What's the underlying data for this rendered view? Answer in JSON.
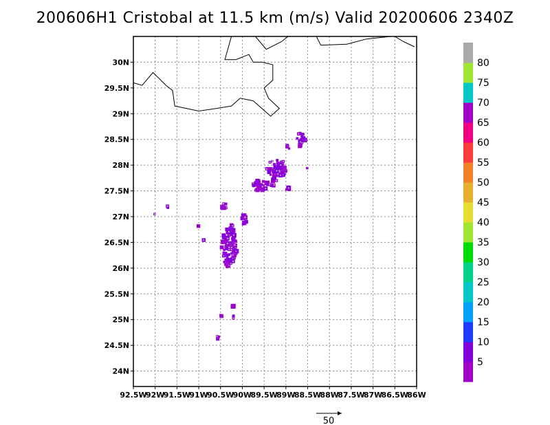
{
  "title": "200606H1 Cristobal at 11.5 km (m/s) Valid 20200606 2340Z",
  "map": {
    "lon_range": [
      -92.5,
      -86.0
    ],
    "lat_range": [
      23.7,
      30.5
    ],
    "lon_ticks": [
      -92.5,
      -92,
      -91.5,
      -91,
      -90.5,
      -90,
      -89.5,
      -89,
      -88.5,
      -88,
      -87.5,
      -87,
      -86.5,
      -86
    ],
    "lon_tick_labels": [
      "92.5W",
      "92W",
      "91.5W",
      "91W",
      "90.5W",
      "90W",
      "89.5W",
      "89W",
      "88.5W",
      "88W",
      "87.5W",
      "87W",
      "86.5W",
      "86W"
    ],
    "lat_ticks": [
      24,
      24.5,
      25,
      25.5,
      26,
      26.5,
      27,
      27.5,
      28,
      28.5,
      29,
      29.5,
      30
    ],
    "lat_tick_labels": [
      "24N",
      "24.5N",
      "25N",
      "25.5N",
      "26N",
      "26.5N",
      "27N",
      "27.5N",
      "28N",
      "28.5N",
      "29N",
      "29.5N",
      "30N"
    ],
    "grid": true,
    "coastline": [
      [
        [
          -92.5,
          29.6
        ],
        [
          -92.3,
          29.55
        ],
        [
          -92.05,
          29.8
        ],
        [
          -91.75,
          29.55
        ],
        [
          -91.6,
          29.45
        ],
        [
          -91.55,
          29.15
        ],
        [
          -91.0,
          29.05
        ],
        [
          -90.6,
          29.1
        ],
        [
          -90.25,
          29.15
        ],
        [
          -90.05,
          29.3
        ],
        [
          -89.75,
          29.25
        ],
        [
          -89.55,
          29.1
        ],
        [
          -89.35,
          28.95
        ],
        [
          -89.15,
          29.1
        ],
        [
          -89.4,
          29.3
        ],
        [
          -89.5,
          29.5
        ],
        [
          -89.3,
          29.65
        ],
        [
          -89.3,
          29.95
        ],
        [
          -89.55,
          30.0
        ],
        [
          -89.75,
          30.0
        ],
        [
          -89.85,
          30.15
        ],
        [
          -90.15,
          30.05
        ],
        [
          -90.4,
          30.05
        ],
        [
          -90.25,
          30.5
        ]
      ],
      [
        [
          -89.7,
          30.5
        ],
        [
          -89.45,
          30.25
        ],
        [
          -89.1,
          30.4
        ],
        [
          -88.95,
          30.5
        ]
      ],
      [
        [
          -88.3,
          30.5
        ],
        [
          -88.2,
          30.33
        ],
        [
          -87.6,
          30.35
        ],
        [
          -87.15,
          30.45
        ],
        [
          -86.6,
          30.5
        ]
      ],
      [
        [
          -86.5,
          30.5
        ],
        [
          -86.3,
          30.4
        ],
        [
          -86.05,
          30.3
        ]
      ]
    ],
    "echo_clusters": [
      {
        "lon": -90.3,
        "lat": 26.4,
        "rlon": 0.18,
        "rlat": 0.38,
        "n": 90
      },
      {
        "lon": -90.25,
        "lat": 26.75,
        "rlon": 0.08,
        "rlat": 0.1,
        "n": 14
      },
      {
        "lon": -90.35,
        "lat": 26.12,
        "rlon": 0.08,
        "rlat": 0.1,
        "n": 10
      },
      {
        "lon": -89.95,
        "lat": 26.95,
        "rlon": 0.07,
        "rlat": 0.12,
        "n": 10
      },
      {
        "lon": -89.6,
        "lat": 27.6,
        "rlon": 0.22,
        "rlat": 0.1,
        "n": 28
      },
      {
        "lon": -89.2,
        "lat": 27.95,
        "rlon": 0.25,
        "rlat": 0.18,
        "n": 50
      },
      {
        "lon": -89.3,
        "lat": 27.7,
        "rlon": 0.12,
        "rlat": 0.1,
        "n": 12
      },
      {
        "lon": -90.4,
        "lat": 27.2,
        "rlon": 0.08,
        "rlat": 0.06,
        "n": 7
      },
      {
        "lon": -88.95,
        "lat": 27.55,
        "rlon": 0.06,
        "rlat": 0.05,
        "n": 5
      },
      {
        "lon": -88.65,
        "lat": 28.5,
        "rlon": 0.1,
        "rlat": 0.18,
        "n": 14
      },
      {
        "lon": -88.95,
        "lat": 28.35,
        "rlon": 0.04,
        "rlat": 0.04,
        "n": 3
      },
      {
        "lon": -90.2,
        "lat": 25.05,
        "rlon": 0.05,
        "rlat": 0.04,
        "n": 3
      },
      {
        "lon": -90.5,
        "lat": 25.05,
        "rlon": 0.04,
        "rlat": 0.04,
        "n": 2
      },
      {
        "lon": -90.2,
        "lat": 25.25,
        "rlon": 0.03,
        "rlat": 0.03,
        "n": 2
      },
      {
        "lon": -90.55,
        "lat": 24.65,
        "rlon": 0.05,
        "rlat": 0.05,
        "n": 3
      },
      {
        "lon": -91.7,
        "lat": 27.2,
        "rlon": 0.03,
        "rlat": 0.03,
        "n": 2
      },
      {
        "lon": -92.0,
        "lat": 27.05,
        "rlon": 0.02,
        "rlat": 0.02,
        "n": 1
      },
      {
        "lon": -91.0,
        "lat": 26.8,
        "rlon": 0.02,
        "rlat": 0.03,
        "n": 1
      },
      {
        "lon": -90.9,
        "lat": 26.55,
        "rlon": 0.02,
        "rlat": 0.02,
        "n": 1
      },
      {
        "lon": -88.5,
        "lat": 27.95,
        "rlon": 0.02,
        "rlat": 0.02,
        "n": 1
      }
    ]
  },
  "colorbar": {
    "colors": [
      "#a000c8",
      "#8200dc",
      "#1e3cff",
      "#00a0ff",
      "#00c8c8",
      "#00d28c",
      "#00dc00",
      "#a0e632",
      "#e6dc32",
      "#e6af2d",
      "#f08228",
      "#fa3c3c",
      "#f00082",
      "#a000c8",
      "#00c8c8",
      "#a0e632",
      "#aaaaaa"
    ],
    "labels": [
      "5",
      "10",
      "15",
      "20",
      "25",
      "30",
      "35",
      "40",
      "45",
      "50",
      "55",
      "60",
      "65",
      "70",
      "75",
      "80"
    ]
  },
  "reference_vector": {
    "label": "50"
  }
}
